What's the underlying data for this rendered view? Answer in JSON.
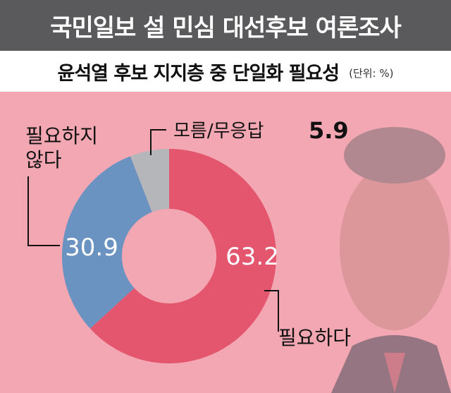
{
  "header": {
    "title": "국민일보 설 민심 대선후보 여론조사"
  },
  "subtitle": {
    "text": "윤석열 후보 지지층 중 단일화 필요성",
    "unit": "(단위: %)"
  },
  "chart_data": {
    "type": "pie",
    "title": "윤석열 후보 지지층 중 단일화 필요성",
    "unit": "(단위: %)",
    "slices": [
      {
        "label": "필요하다",
        "value": 63.2,
        "color": "#e4566e"
      },
      {
        "label": "필요하지 않다",
        "value": 30.9,
        "color": "#6b93c2"
      },
      {
        "label": "모름/무응답",
        "value": 5.9,
        "color": "#b4b6b9"
      }
    ]
  }
}
